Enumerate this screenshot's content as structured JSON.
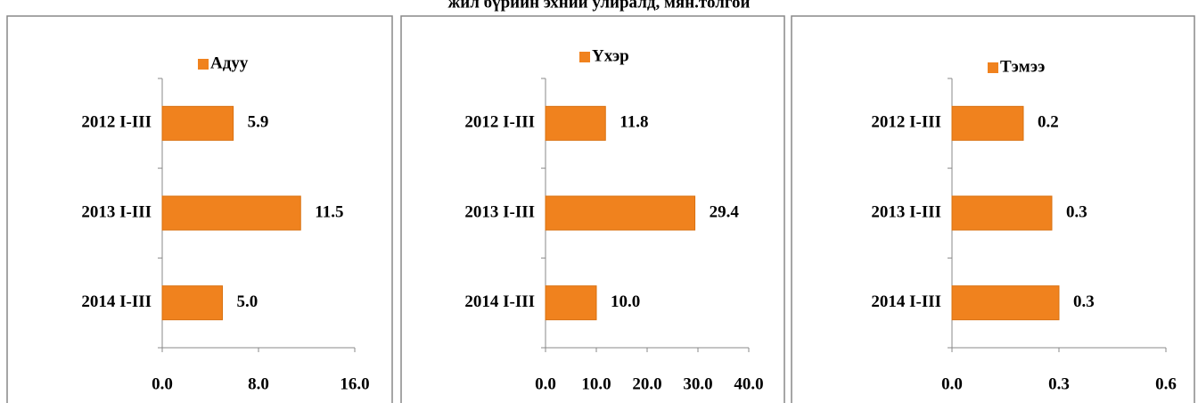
{
  "title": "жил бүрийн эхний улиралд, мян.толгой",
  "chart_data": [
    {
      "type": "bar",
      "series": [
        {
          "name": "Адуу",
          "color": "#f0821e",
          "values": [
            5.9,
            11.5,
            5.0
          ],
          "value_labels": [
            "5.9",
            "11.5",
            "5.0"
          ]
        }
      ],
      "categories": [
        "2012 I-III",
        "2013 I-III",
        "2014 I-III"
      ],
      "xlim": [
        0,
        16
      ],
      "xticks": [
        {
          "value": 0,
          "label": "0.0"
        },
        {
          "value": 8,
          "label": "8.0"
        },
        {
          "value": 16,
          "label": "16.0"
        }
      ]
    },
    {
      "type": "bar",
      "series": [
        {
          "name": "Үхэр",
          "color": "#f0821e",
          "values": [
            11.8,
            29.4,
            10.0
          ],
          "value_labels": [
            "11.8",
            "29.4",
            "10.0"
          ]
        }
      ],
      "categories": [
        "2012 I-III",
        "2013 I-III",
        "2014 I-III"
      ],
      "xlim": [
        0,
        40
      ],
      "xticks": [
        {
          "value": 0,
          "label": "0.0"
        },
        {
          "value": 10,
          "label": "10.0"
        },
        {
          "value": 20,
          "label": "20.0"
        },
        {
          "value": 30,
          "label": "30.0"
        },
        {
          "value": 40,
          "label": "40.0"
        }
      ]
    },
    {
      "type": "bar",
      "series": [
        {
          "name": "Тэмээ",
          "color": "#f0821e",
          "values": [
            0.2,
            0.28,
            0.3
          ],
          "value_labels": [
            "0.2",
            "0.3",
            "0.3"
          ]
        }
      ],
      "categories": [
        "2012 I-III",
        "2013 I-III",
        "2014 I-III"
      ],
      "xlim": [
        0,
        0.6
      ],
      "xticks": [
        {
          "value": 0,
          "label": "0.0"
        },
        0.3,
        0.6
      ]
    }
  ]
}
